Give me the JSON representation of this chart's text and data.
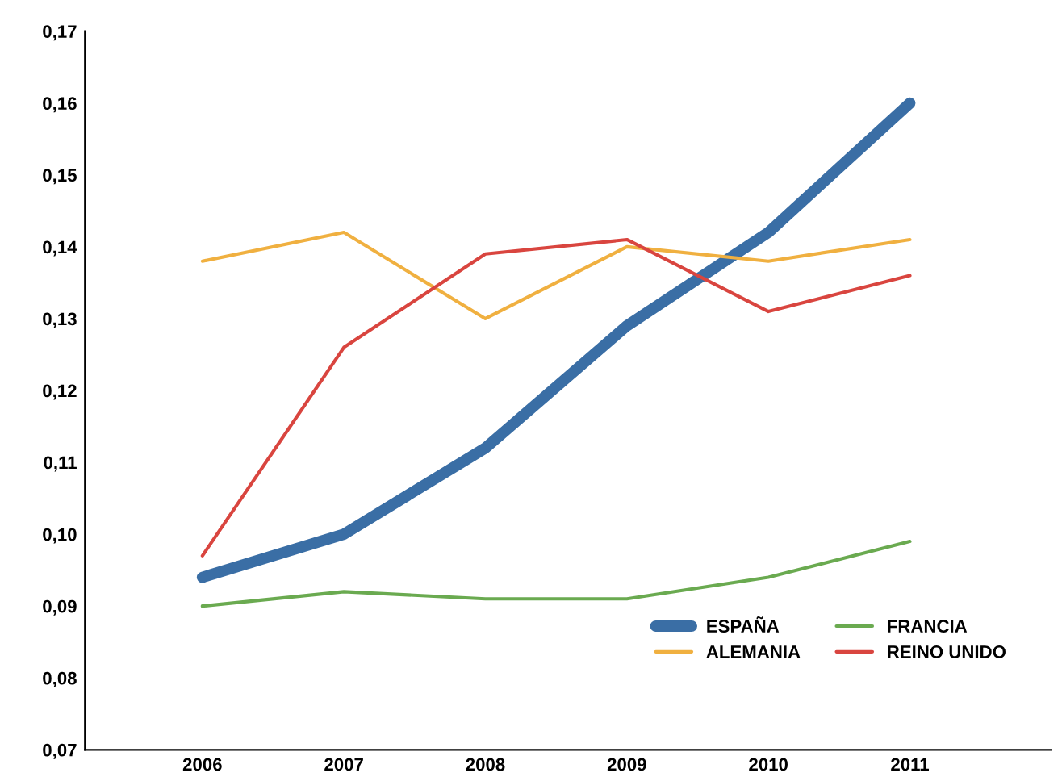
{
  "chart_data": {
    "type": "line",
    "categories": [
      "2006",
      "2007",
      "2008",
      "2009",
      "2010",
      "2011"
    ],
    "series": [
      {
        "name": "ESPAÑA",
        "color": "#3a6ea5",
        "values": [
          0.094,
          0.1,
          0.112,
          0.129,
          0.142,
          0.16
        ]
      },
      {
        "name": "ALEMANIA",
        "color": "#f0b040",
        "values": [
          0.138,
          0.142,
          0.13,
          0.14,
          0.138,
          0.141
        ]
      },
      {
        "name": "FRANCIA",
        "color": "#6aaa50",
        "values": [
          0.09,
          0.092,
          0.091,
          0.091,
          0.094,
          0.099
        ]
      },
      {
        "name": "REINO UNIDO",
        "color": "#d9453f",
        "values": [
          0.097,
          0.126,
          0.139,
          0.141,
          0.131,
          0.136
        ]
      }
    ],
    "ylim": [
      0.07,
      0.17
    ],
    "yticks": [
      {
        "value": 0.07,
        "label": "0,07"
      },
      {
        "value": 0.08,
        "label": "0,08"
      },
      {
        "value": 0.09,
        "label": "0,09"
      },
      {
        "value": 0.1,
        "label": "0,10"
      },
      {
        "value": 0.11,
        "label": "0,11"
      },
      {
        "value": 0.12,
        "label": "0,12"
      },
      {
        "value": 0.13,
        "label": "0,13"
      },
      {
        "value": 0.14,
        "label": "0,14"
      },
      {
        "value": 0.15,
        "label": "0,15"
      },
      {
        "value": 0.16,
        "label": "0,16"
      },
      {
        "value": 0.17,
        "label": "0,17"
      }
    ],
    "grid": false,
    "legend": "bottom right",
    "marker": "none",
    "line_style": "solid"
  }
}
